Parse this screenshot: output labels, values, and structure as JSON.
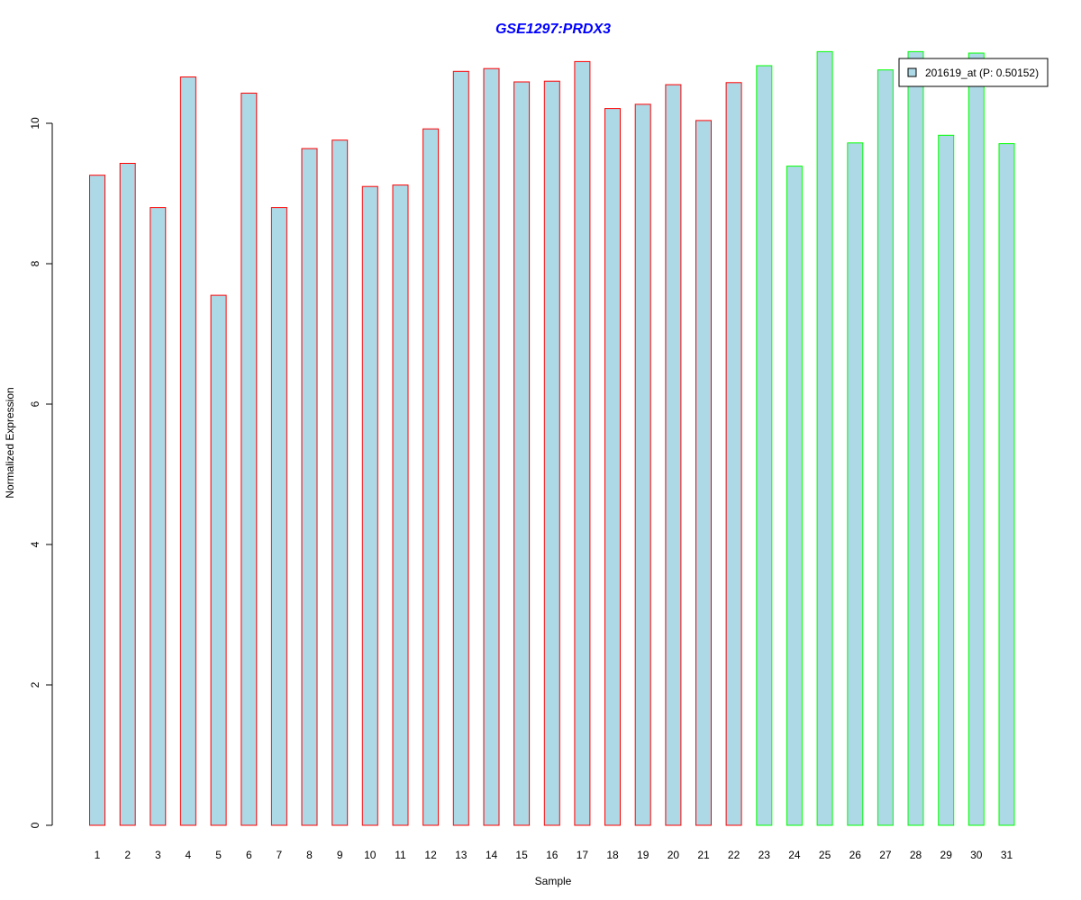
{
  "chart_data": {
    "type": "bar",
    "title": "GSE1297:PRDX3",
    "xlabel": "Sample",
    "ylabel": "Normalized Expression",
    "ylim": [
      0,
      11
    ],
    "yticks": [
      0,
      2,
      4,
      6,
      8,
      10
    ],
    "categories": [
      "1",
      "2",
      "3",
      "4",
      "5",
      "6",
      "7",
      "8",
      "9",
      "10",
      "11",
      "12",
      "13",
      "14",
      "15",
      "16",
      "17",
      "18",
      "19",
      "20",
      "21",
      "22",
      "23",
      "24",
      "25",
      "26",
      "27",
      "28",
      "29",
      "30",
      "31"
    ],
    "series": [
      {
        "name": "201619_at (P: 0.50152)",
        "values": [
          9.26,
          9.43,
          8.8,
          10.66,
          7.55,
          10.43,
          8.8,
          9.64,
          9.76,
          9.1,
          9.12,
          9.92,
          10.74,
          10.78,
          10.59,
          10.6,
          10.88,
          10.21,
          10.27,
          10.55,
          10.04,
          10.58,
          10.82,
          9.39,
          11.02,
          9.72,
          10.76,
          11.02,
          9.83,
          11.0,
          9.71
        ]
      }
    ],
    "groups": [
      "red",
      "red",
      "red",
      "red",
      "red",
      "red",
      "red",
      "red",
      "red",
      "red",
      "red",
      "red",
      "red",
      "red",
      "red",
      "red",
      "red",
      "red",
      "red",
      "red",
      "red",
      "red",
      "green",
      "green",
      "green",
      "green",
      "green",
      "green",
      "green",
      "green",
      "green"
    ],
    "group_colors": {
      "red": "#ff0000",
      "green": "#00ff00"
    },
    "bar_fill": "#add8e6",
    "title_color": "#0000ff",
    "legend_position": "top-right",
    "grid": false
  }
}
